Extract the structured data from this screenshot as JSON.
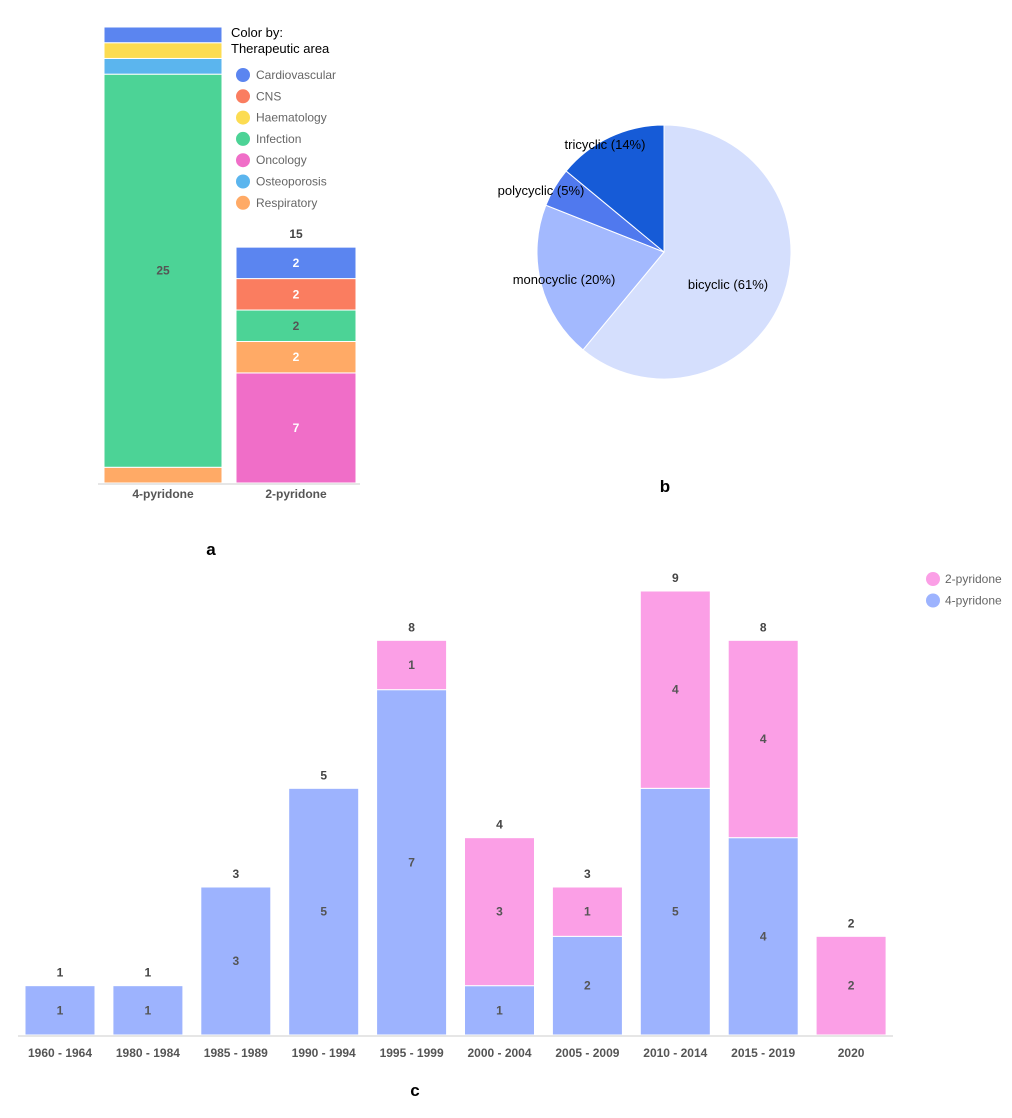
{
  "colors": {
    "Cardiovascular": "#5b85f0",
    "CNS": "#fa7d60",
    "Haematology": "#fcdc52",
    "Infection": "#4cd396",
    "Oncology": "#f06ec8",
    "Osteoporosis": "#5bb5ee",
    "Respiratory": "#ffaa66",
    "pyridone2": "#fb9fe6",
    "pyridone4": "#9db3fe",
    "bicyclic": "#d5dffd",
    "monocyclic": "#a3b9fe",
    "polycyclic": "#5079ee",
    "tricyclic": "#165bd7"
  },
  "panels": {
    "a": "a",
    "b": "b",
    "c": "c"
  },
  "chart_data": [
    {
      "id": "a",
      "type": "bar",
      "stacked": true,
      "categories": [
        "4-pyridone",
        "2-pyridone"
      ],
      "series": [
        {
          "name": "Oncology",
          "values": [
            0,
            7
          ]
        },
        {
          "name": "Respiratory",
          "values": [
            1,
            2
          ]
        },
        {
          "name": "Infection",
          "values": [
            25,
            2
          ]
        },
        {
          "name": "CNS",
          "values": [
            0,
            2
          ]
        },
        {
          "name": "Osteoporosis",
          "values": [
            1,
            0
          ]
        },
        {
          "name": "Haematology",
          "values": [
            1,
            0
          ]
        },
        {
          "name": "Cardiovascular",
          "values": [
            1,
            2
          ]
        }
      ],
      "segment_labels_shown": [
        [
          false,
          true
        ],
        [
          false,
          true
        ],
        [
          true,
          true
        ],
        [
          false,
          true
        ],
        [
          false,
          false
        ],
        [
          false,
          false
        ],
        [
          false,
          true
        ]
      ],
      "totals_shown": [
        null,
        "15"
      ],
      "ylim": [
        0,
        29
      ],
      "legend_title": "Color by:",
      "legend_subtitle": "Therapeutic area",
      "legend_items": [
        "Cardiovascular",
        "CNS",
        "Haematology",
        "Infection",
        "Oncology",
        "Osteoporosis",
        "Respiratory"
      ],
      "legend_position": "top-right"
    },
    {
      "id": "b",
      "type": "pie",
      "slices": [
        {
          "name": "bicyclic",
          "value": 61,
          "label": "bicyclic (61%)"
        },
        {
          "name": "monocyclic",
          "value": 20,
          "label": "monocyclic (20%)"
        },
        {
          "name": "polycyclic",
          "value": 5,
          "label": "polycyclic (5%)"
        },
        {
          "name": "tricyclic",
          "value": 14,
          "label": "tricyclic (14%)"
        }
      ]
    },
    {
      "id": "c",
      "type": "bar",
      "stacked": true,
      "categories": [
        "1960 - 1964",
        "1980 - 1984",
        "1985 - 1989",
        "1990 - 1994",
        "1995 - 1999",
        "2000 - 2004",
        "2005 - 2009",
        "2010 - 2014",
        "2015 - 2019",
        "2020"
      ],
      "series": [
        {
          "name": "4-pyridone",
          "values": [
            1,
            1,
            3,
            5,
            7,
            1,
            2,
            5,
            4,
            0
          ]
        },
        {
          "name": "2-pyridone",
          "values": [
            0,
            0,
            0,
            0,
            1,
            3,
            1,
            4,
            4,
            2
          ]
        }
      ],
      "totals": [
        1,
        1,
        3,
        5,
        8,
        4,
        3,
        9,
        8,
        2
      ],
      "ylim": [
        0,
        9
      ],
      "legend_items": [
        "2-pyridone",
        "4-pyridone"
      ],
      "legend_position": "top-right"
    }
  ]
}
